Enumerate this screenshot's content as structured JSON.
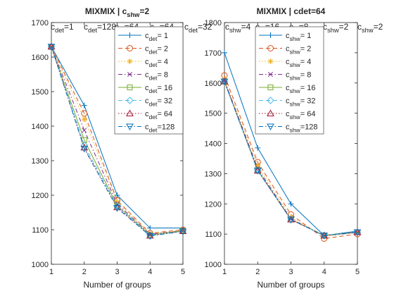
{
  "chart_data": [
    {
      "type": "line",
      "title": "MIXMIX | c",
      "title_sub": "shw",
      "title_suffix": "=2",
      "xlabel": "Number of groups",
      "ylabel": "",
      "x": [
        1,
        2,
        3,
        4,
        5
      ],
      "xlim": [
        1,
        5
      ],
      "ylim": [
        1000,
        1700
      ],
      "xticks": [
        "1",
        "2",
        "3",
        "4",
        "5"
      ],
      "yticks": [
        "1000",
        "1100",
        "1200",
        "1300",
        "1400",
        "1500",
        "1600",
        "1700"
      ],
      "grid": false,
      "legend_position": "top-right",
      "legend_sym": "c",
      "legend_sub": "det",
      "top_labels": [
        {
          "sym": "c",
          "sub": "det",
          "suffix": "=1"
        },
        {
          "sym": "c",
          "sub": "det",
          "suffix": "=128"
        },
        {
          "sym": "c",
          "sub": "...",
          "suffix": "=64"
        },
        {
          "sym": "c",
          "sub": "...",
          "suffix": "=64"
        },
        {
          "sym": "c",
          "sub": "det",
          "suffix": "=32"
        }
      ],
      "series": [
        {
          "name": "=  1",
          "values": [
            1630,
            1460,
            1200,
            1105,
            1105
          ]
        },
        {
          "name": "=  2",
          "values": [
            1630,
            1437,
            1185,
            1090,
            1100
          ]
        },
        {
          "name": "=  4",
          "values": [
            1630,
            1420,
            1180,
            1088,
            1098
          ]
        },
        {
          "name": "=  8",
          "values": [
            1630,
            1388,
            1175,
            1087,
            1097
          ]
        },
        {
          "name": "= 16",
          "values": [
            1630,
            1360,
            1170,
            1085,
            1097
          ]
        },
        {
          "name": "= 32",
          "values": [
            1630,
            1345,
            1168,
            1084,
            1096
          ]
        },
        {
          "name": "= 64",
          "values": [
            1630,
            1338,
            1165,
            1083,
            1096
          ]
        },
        {
          "name": "=128",
          "values": [
            1630,
            1335,
            1163,
            1082,
            1095
          ]
        }
      ]
    },
    {
      "type": "line",
      "title": "MIXMIX | cdet=64",
      "title_sub": "",
      "title_suffix": "",
      "xlabel": "Number of groups",
      "ylabel": "",
      "x": [
        1,
        2,
        3,
        4,
        5
      ],
      "xlim": [
        1,
        5
      ],
      "ylim": [
        1000,
        1800
      ],
      "xticks": [
        "1",
        "2",
        "3",
        "4",
        "5"
      ],
      "yticks": [
        "1000",
        "1100",
        "1200",
        "1300",
        "1400",
        "1500",
        "1600",
        "1700",
        "1800"
      ],
      "grid": false,
      "legend_position": "top-right",
      "legend_sym": "c",
      "legend_sub": "shw",
      "top_labels": [
        {
          "sym": "c",
          "sub": "shw",
          "suffix": "=4"
        },
        {
          "sym": "c",
          "sub": "...",
          "suffix": "=16"
        },
        {
          "sym": "c",
          "sub": "...",
          "suffix": "=8"
        },
        {
          "sym": "c",
          "sub": "shw",
          "suffix": "=2"
        },
        {
          "sym": "c",
          "sub": "shw",
          "suffix": "=2"
        }
      ],
      "series": [
        {
          "name": "=  1",
          "values": [
            1700,
            1385,
            1200,
            1095,
            1110
          ]
        },
        {
          "name": "=  2",
          "values": [
            1625,
            1338,
            1165,
            1085,
            1100
          ]
        },
        {
          "name": "=  4",
          "values": [
            1612,
            1328,
            1155,
            1092,
            1105
          ]
        },
        {
          "name": "=  8",
          "values": [
            1608,
            1318,
            1150,
            1095,
            1105
          ]
        },
        {
          "name": "= 16",
          "values": [
            1605,
            1312,
            1148,
            1096,
            1106
          ]
        },
        {
          "name": "= 32",
          "values": [
            1605,
            1310,
            1148,
            1095,
            1106
          ]
        },
        {
          "name": "= 64",
          "values": [
            1605,
            1310,
            1148,
            1095,
            1106
          ]
        },
        {
          "name": "=128",
          "values": [
            1605,
            1310,
            1148,
            1095,
            1106
          ]
        }
      ]
    }
  ],
  "series_styles": [
    {
      "color": "#0072BD",
      "dash": "",
      "marker": "plus"
    },
    {
      "color": "#D95319",
      "dash": "6,4",
      "marker": "circle"
    },
    {
      "color": "#EDB120",
      "dash": "1.5,2.5",
      "marker": "asterisk"
    },
    {
      "color": "#7E2F8E",
      "dash": "6,3,1.5,3",
      "marker": "x"
    },
    {
      "color": "#77AC30",
      "dash": "",
      "marker": "square"
    },
    {
      "color": "#4DBEEE",
      "dash": "6,4",
      "marker": "diamond"
    },
    {
      "color": "#A2142F",
      "dash": "1.5,2.5",
      "marker": "triangle-up"
    },
    {
      "color": "#0072BD",
      "dash": "6,3,1.5,3",
      "marker": "triangle-down"
    }
  ]
}
